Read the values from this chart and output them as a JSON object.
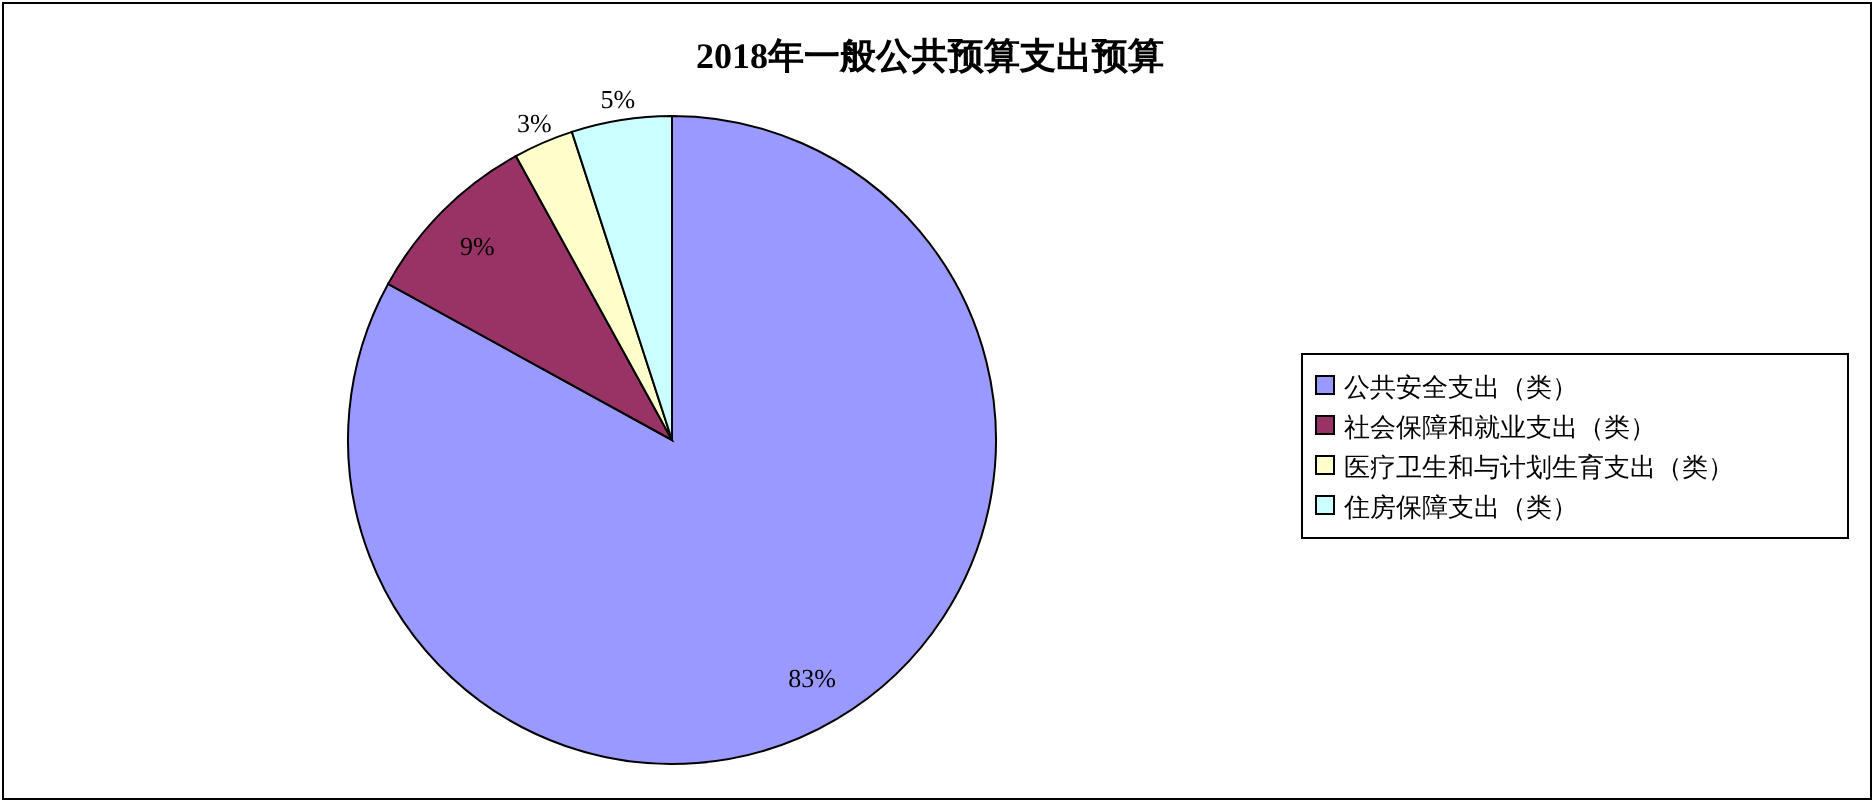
{
  "chart_data": {
    "type": "pie",
    "title": "2018年一般公共预算支出预算",
    "categories": [
      "公共安全支出（类）",
      "社会保障和就业支出（类）",
      "医疗卫生和与计划生育支出（类）",
      "住房保障支出（类）"
    ],
    "values": [
      83,
      9,
      3,
      5
    ],
    "colors": [
      "#9999ff",
      "#993366",
      "#ffffcc",
      "#ccffff"
    ],
    "value_labels": [
      "83%",
      "9%",
      "3%",
      "5%"
    ],
    "legend": "right"
  }
}
